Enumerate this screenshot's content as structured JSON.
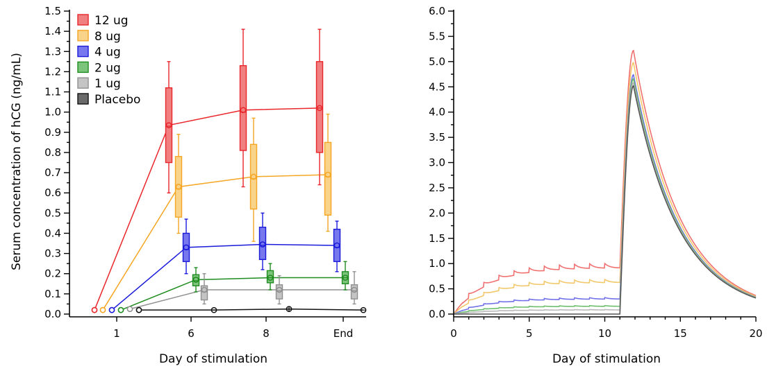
{
  "chart_data": [
    {
      "type": "box",
      "xlabel": "Day of stimulation",
      "ylabel": "Serum concentration of hCG (ng/mL)",
      "categories": [
        "1",
        "6",
        "8",
        "End"
      ],
      "ylim": [
        0,
        1.5
      ],
      "yticks": [
        "0.0",
        "0.1",
        "0.2",
        "0.3",
        "0.4",
        "0.5",
        "0.6",
        "0.7",
        "0.8",
        "0.9",
        "1.0",
        "1.1",
        "1.2",
        "1.3",
        "1.4",
        "1.5"
      ],
      "legend_position": "top-left",
      "series": [
        {
          "name": "12 ug",
          "color": "#e8262b",
          "fill": "#f08080",
          "baseline": 0.02,
          "mean": [
            0.935,
            1.01,
            1.02
          ],
          "median": [
            0.93,
            1.0,
            1.02
          ],
          "q1": [
            0.75,
            0.81,
            0.8
          ],
          "q3": [
            1.12,
            1.23,
            1.25
          ],
          "wlo": [
            0.6,
            0.63,
            0.64
          ],
          "whi": [
            1.25,
            1.41,
            1.41
          ]
        },
        {
          "name": "8 ug",
          "color": "#f5a623",
          "fill": "#fad38a",
          "baseline": 0.02,
          "mean": [
            0.63,
            0.68,
            0.69
          ],
          "median": [
            0.62,
            0.67,
            0.68
          ],
          "q1": [
            0.48,
            0.52,
            0.49
          ],
          "q3": [
            0.78,
            0.84,
            0.85
          ],
          "wlo": [
            0.4,
            0.36,
            0.41
          ],
          "whi": [
            0.89,
            0.97,
            0.99
          ]
        },
        {
          "name": "4 ug",
          "color": "#1a1adb",
          "fill": "#7878ee",
          "baseline": 0.02,
          "mean": [
            0.33,
            0.345,
            0.34
          ],
          "median": [
            0.32,
            0.34,
            0.33
          ],
          "q1": [
            0.26,
            0.27,
            0.26
          ],
          "q3": [
            0.4,
            0.43,
            0.42
          ],
          "wlo": [
            0.2,
            0.22,
            0.21
          ],
          "whi": [
            0.47,
            0.5,
            0.46
          ]
        },
        {
          "name": "2 ug",
          "color": "#1e8c1e",
          "fill": "#7cc47c",
          "baseline": 0.02,
          "mean": [
            0.17,
            0.18,
            0.18
          ],
          "median": [
            0.165,
            0.18,
            0.18
          ],
          "q1": [
            0.14,
            0.155,
            0.15
          ],
          "q3": [
            0.195,
            0.215,
            0.21
          ],
          "wlo": [
            0.11,
            0.12,
            0.12
          ],
          "whi": [
            0.23,
            0.25,
            0.26
          ]
        },
        {
          "name": "1 ug",
          "color": "#909090",
          "fill": "#c4c4c4",
          "baseline": 0.025,
          "mean": [
            0.12,
            0.12,
            0.12
          ],
          "median": [
            0.11,
            0.115,
            0.115
          ],
          "q1": [
            0.07,
            0.075,
            0.075
          ],
          "q3": [
            0.14,
            0.145,
            0.145
          ],
          "wlo": [
            0.05,
            0.05,
            0.05
          ],
          "whi": [
            0.2,
            0.19,
            0.21
          ]
        },
        {
          "name": "Placebo",
          "color": "#111111",
          "fill": "#6a6a6a",
          "baseline": 0.02,
          "mean": [
            0.02,
            0.025,
            0.02
          ]
        }
      ]
    },
    {
      "type": "line",
      "xlabel": "Day of stimulation",
      "ylabel": "",
      "xlim": [
        0,
        20
      ],
      "ylim": [
        0,
        6
      ],
      "xticks": [
        "0",
        "5",
        "10",
        "15",
        "20"
      ],
      "yticks": [
        "0.0",
        "0.5",
        "1.0",
        "1.5",
        "2.0",
        "2.5",
        "3.0",
        "3.5",
        "4.0",
        "4.5",
        "5.0",
        "5.5",
        "6.0"
      ],
      "series": [
        {
          "color": "#f07070",
          "plateau": 0.95,
          "peak": 5.22
        },
        {
          "color": "#f2c86a",
          "plateau": 0.65,
          "peak": 4.98
        },
        {
          "color": "#7070e8",
          "plateau": 0.31,
          "peak": 4.74
        },
        {
          "color": "#6cbf6c",
          "plateau": 0.16,
          "peak": 4.66
        },
        {
          "color": "#b8b8b8",
          "plateau": 0.085,
          "peak": 4.58
        },
        {
          "color": "#555555",
          "plateau": 0.0,
          "peak": 4.52
        }
      ]
    }
  ]
}
